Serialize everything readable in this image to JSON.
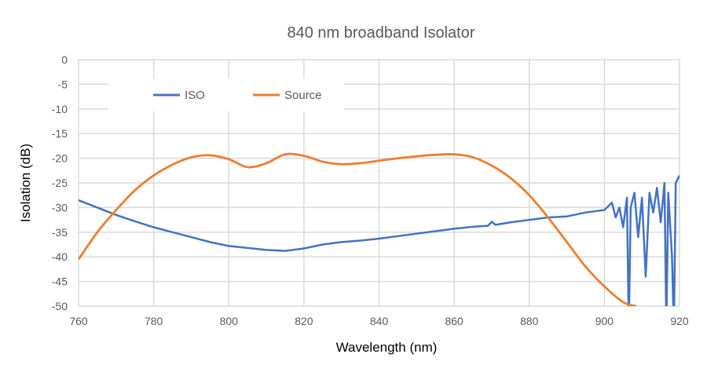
{
  "chart_data": {
    "type": "line",
    "title": "840 nm broadband Isolator",
    "xlabel": "Wavelength (nm)",
    "ylabel": "Isolation (dB)",
    "xlim": [
      760,
      920
    ],
    "ylim": [
      -50,
      0
    ],
    "xticks": [
      760,
      780,
      800,
      820,
      840,
      860,
      880,
      900,
      920
    ],
    "yticks": [
      0,
      -5,
      -10,
      -15,
      -20,
      -25,
      -30,
      -35,
      -40,
      -45,
      -50
    ],
    "grid": true,
    "legend": "top-left",
    "series": [
      {
        "name": "ISO",
        "color": "#4472C4",
        "x": [
          760,
          765,
          770,
          775,
          780,
          785,
          790,
          795,
          800,
          805,
          810,
          815,
          820,
          825,
          830,
          835,
          840,
          845,
          850,
          855,
          860,
          865,
          869,
          870,
          871,
          875,
          880,
          885,
          890,
          895,
          900,
          902,
          903,
          904,
          905,
          906,
          906.5,
          907,
          908,
          909,
          910,
          911,
          912,
          913,
          914,
          915,
          916,
          916.5,
          917,
          918,
          918.5,
          919,
          920
        ],
        "y": [
          -28.5,
          -30,
          -31.5,
          -32.8,
          -34,
          -35,
          -36,
          -37,
          -37.8,
          -38.2,
          -38.6,
          -38.8,
          -38.3,
          -37.5,
          -37,
          -36.7,
          -36.3,
          -35.8,
          -35.3,
          -34.8,
          -34.3,
          -33.9,
          -33.7,
          -32.9,
          -33.5,
          -33,
          -32.5,
          -32,
          -31.8,
          -31,
          -30.5,
          -29,
          -32,
          -30,
          -34,
          -28,
          -55,
          -30,
          -27,
          -36,
          -28,
          -44,
          -27,
          -31,
          -26,
          -33,
          -25,
          -55,
          -27,
          -40,
          -55,
          -25,
          -23.5
        ]
      },
      {
        "name": "Source",
        "color": "#ED7D31",
        "x": [
          760,
          765,
          770,
          775,
          780,
          785,
          790,
          795,
          800,
          805,
          810,
          815,
          820,
          825,
          830,
          835,
          840,
          845,
          850,
          855,
          860,
          865,
          870,
          875,
          880,
          885,
          890,
          895,
          900,
          905,
          908.5
        ],
        "y": [
          -40.5,
          -35,
          -30.5,
          -26.5,
          -23.5,
          -21.3,
          -19.8,
          -19.4,
          -20.2,
          -21.8,
          -21,
          -19.2,
          -19.5,
          -20.7,
          -21.2,
          -21,
          -20.5,
          -20,
          -19.6,
          -19.3,
          -19.2,
          -19.8,
          -21.5,
          -24,
          -27.5,
          -32,
          -37,
          -42,
          -46,
          -49.2,
          -50
        ]
      }
    ]
  }
}
